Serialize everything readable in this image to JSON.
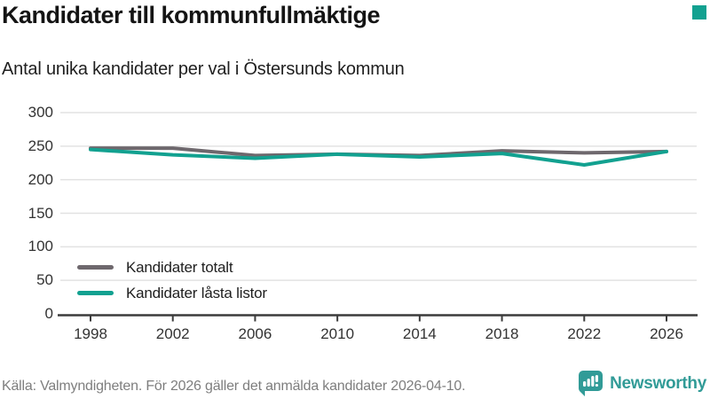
{
  "header": {
    "title": "Kandidater till kommunfullmäktige",
    "subtitle": "Antal unika kandidater per val i Östersunds kommun"
  },
  "footer": {
    "source": "Källa: Valmyndigheten. För 2026 gäller det anmälda kandidater 2026-04-10.",
    "brand": "Newsworthy"
  },
  "colors": {
    "accent_teal": "#12a190",
    "series_gray": "#6e686d",
    "brand_teal": "#319b97",
    "gridline": "#e2e2e2",
    "axis": "#3b3b3b",
    "tick_text": "#333333",
    "source_text": "#7e7e7e"
  },
  "chart_data": {
    "type": "line",
    "title": "Kandidater till kommunfullmäktige",
    "subtitle": "Antal unika kandidater per val i Östersunds kommun",
    "source": "Källa: Valmyndigheten. För 2026 gäller det anmälda kandidater 2026-04-10.",
    "x": [
      1998,
      2002,
      2006,
      2010,
      2014,
      2018,
      2022,
      2026
    ],
    "series": [
      {
        "name": "Kandidater totalt",
        "color": "#6e686d",
        "values": [
          247,
          247,
          236,
          238,
          236,
          243,
          240,
          242
        ]
      },
      {
        "name": "Kandidater låsta listor",
        "color": "#12a190",
        "values": [
          245,
          237,
          232,
          238,
          234,
          239,
          222,
          242
        ]
      }
    ],
    "xlabel": "",
    "ylabel": "",
    "ylim": [
      0,
      300
    ],
    "yticks": [
      0,
      50,
      100,
      150,
      200,
      250,
      300
    ],
    "grid": true,
    "legend_position": "inside-bottom-left"
  }
}
